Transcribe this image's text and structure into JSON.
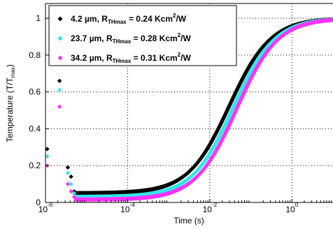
{
  "chart_data": {
    "type": "scatter",
    "xlabel": "Time (s)",
    "ylabel": "Temperature (T/T",
    "ylabel_sub": "max",
    "ylabel_end": ")",
    "x_scale": "log",
    "xlim": [
      1e-06,
      10
    ],
    "ylim": [
      0,
      1.08
    ],
    "grid": true,
    "legend_position": "top-left",
    "x_ticks": [
      {
        "value": 1e-06,
        "base": "10",
        "exp": "-6"
      },
      {
        "value": 0.0001,
        "base": "10",
        "exp": "-4"
      },
      {
        "value": 0.01,
        "base": "10",
        "exp": "-2"
      },
      {
        "value": 1,
        "base": "10",
        "exp": "0"
      }
    ],
    "y_ticks": [
      {
        "value": 0,
        "label": "0"
      },
      {
        "value": 0.2,
        "label": "0.2"
      },
      {
        "value": 0.4,
        "label": "0.4"
      },
      {
        "value": 0.6,
        "label": "0.6"
      },
      {
        "value": 0.8,
        "label": "0.8"
      },
      {
        "value": 1,
        "label": "1"
      }
    ],
    "series": [
      {
        "name_prefix": "4.2 µm, R",
        "name_sub": "THmax",
        "name_value": " = 0.24 Kcm",
        "name_sup": "2",
        "name_suffix": "/W",
        "color": "#000000",
        "t50": 0.03,
        "early_points": [
          [
            1.1e-06,
            0.29
          ],
          [
            2.2e-06,
            0.66
          ],
          [
            3.5e-06,
            0.19
          ],
          [
            4.2e-06,
            0.14
          ],
          [
            5e-06,
            0.06
          ]
        ]
      },
      {
        "name_prefix": "23.7 µm, R",
        "name_sub": "THmax",
        "name_value": " = 0.28 Kcm",
        "name_sup": "2",
        "name_suffix": "/W",
        "color": "#33e6e6",
        "t50": 0.037,
        "early_points": [
          [
            1.1e-06,
            0.25
          ],
          [
            2.2e-06,
            0.61
          ],
          [
            3.5e-06,
            0.16
          ],
          [
            4.2e-06,
            0.1
          ],
          [
            5e-06,
            0.05
          ]
        ]
      },
      {
        "name_prefix": "34.2 µm, R",
        "name_sub": "THmax",
        "name_value": " = 0.31 Kcm",
        "name_sup": "2",
        "name_suffix": "/W",
        "color": "#ff33ff",
        "t50": 0.045,
        "early_points": [
          [
            1.1e-06,
            0.2
          ],
          [
            2.2e-06,
            0.52
          ],
          [
            3.5e-06,
            0.1
          ],
          [
            4.2e-06,
            0.06
          ],
          [
            5e-06,
            0.03
          ]
        ]
      }
    ],
    "plateau_levels": [
      0.05,
      0.03,
      0.015
    ]
  }
}
